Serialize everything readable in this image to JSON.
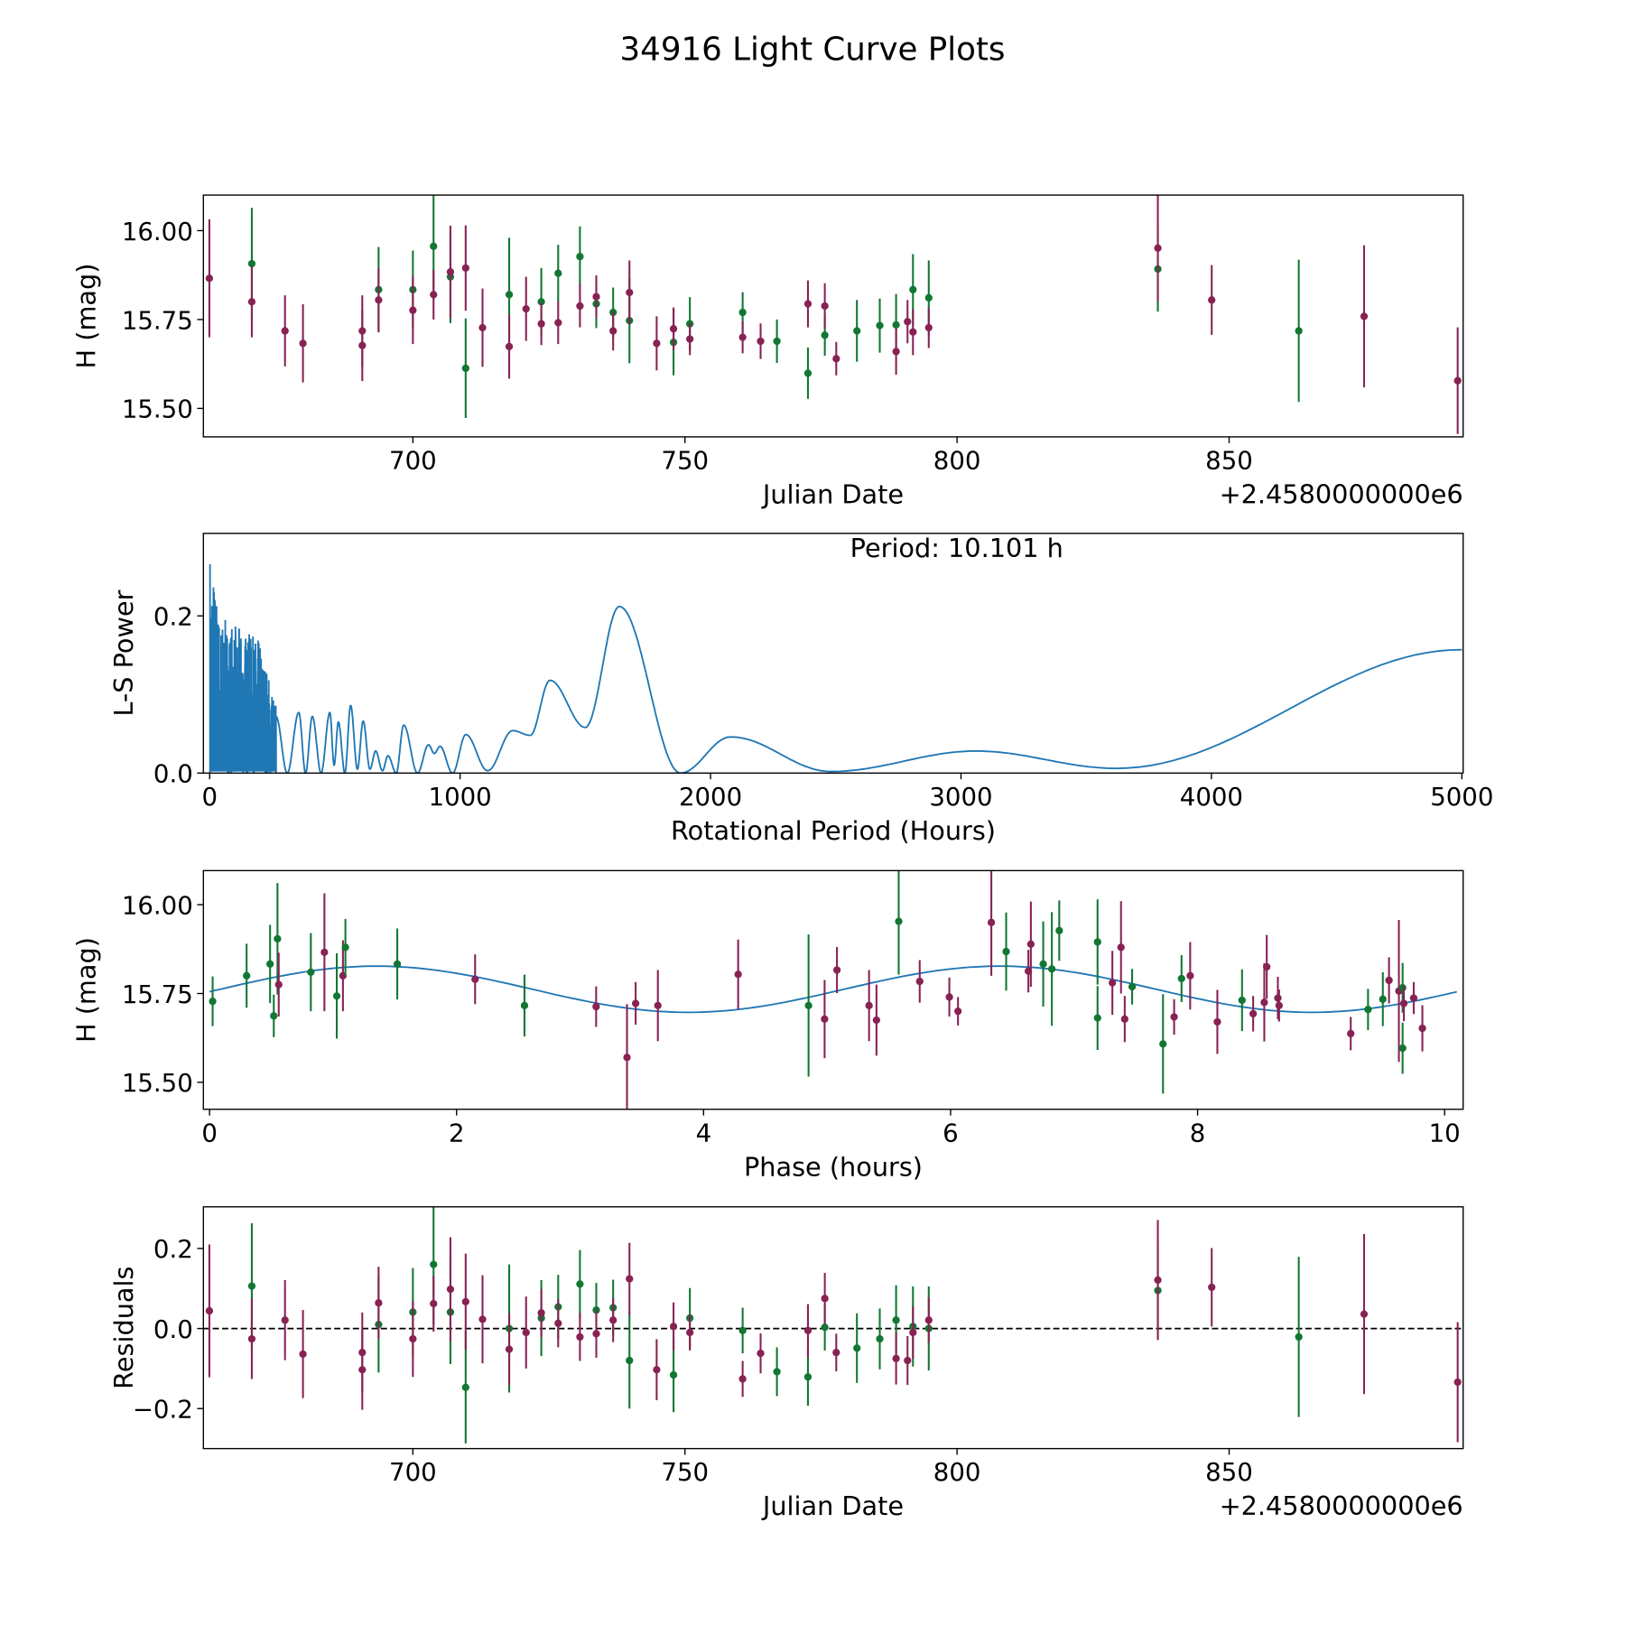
{
  "title": "34916 Light Curve Plots",
  "colors": {
    "maroon": "#882255",
    "green": "#117733",
    "line": "#1f77b4"
  },
  "chart_data": [
    {
      "type": "scatter",
      "name": "light-curve",
      "xlabel": "Julian Date",
      "ylabel": "H (mag)",
      "offset_text": "+2.4580000000e6",
      "xlim": [
        661.5,
        893
      ],
      "ylim": [
        15.42,
        16.1
      ],
      "xticks": [
        700,
        750,
        800,
        850
      ],
      "xtick_labels": [
        "700",
        "750",
        "800",
        "850"
      ],
      "yticks": [
        15.5,
        15.75,
        16.0
      ],
      "ytick_labels": [
        "15.50",
        "15.75",
        "16.00"
      ],
      "points": [
        [
          662.6,
          15.866,
          0.166,
          "m",
          0.044
        ],
        [
          670.4,
          15.907,
          0.157,
          "g",
          0.106
        ],
        [
          670.4,
          15.8,
          0.1,
          "m",
          -0.026
        ],
        [
          676.5,
          15.718,
          0.1,
          "m",
          0.021
        ],
        [
          679.8,
          15.683,
          0.11,
          "m",
          -0.064
        ],
        [
          690.7,
          15.718,
          0.1,
          "m",
          -0.06
        ],
        [
          690.7,
          15.677,
          0.1,
          "m",
          -0.103
        ],
        [
          693.7,
          15.834,
          0.12,
          "g",
          0.01
        ],
        [
          693.7,
          15.805,
          0.09,
          "m",
          0.064
        ],
        [
          700.0,
          15.834,
          0.11,
          "g",
          0.041
        ],
        [
          700.0,
          15.776,
          0.095,
          "m",
          -0.026
        ],
        [
          703.8,
          15.956,
          0.15,
          "g",
          0.16
        ],
        [
          703.8,
          15.82,
          0.07,
          "m",
          0.062
        ],
        [
          706.9,
          15.87,
          0.13,
          "g",
          0.041
        ],
        [
          706.9,
          15.884,
          0.13,
          "m",
          0.098
        ],
        [
          709.7,
          15.613,
          0.14,
          "g",
          -0.147
        ],
        [
          709.7,
          15.895,
          0.12,
          "m",
          0.067
        ],
        [
          712.8,
          15.727,
          0.11,
          "m",
          0.023
        ],
        [
          717.7,
          15.82,
          0.16,
          "g",
          0.0
        ],
        [
          717.7,
          15.674,
          0.09,
          "m",
          -0.052
        ],
        [
          720.8,
          15.78,
          0.09,
          "m",
          -0.01
        ],
        [
          723.6,
          15.8,
          0.095,
          "g",
          0.026
        ],
        [
          723.6,
          15.738,
          0.06,
          "m",
          0.039
        ],
        [
          726.7,
          15.88,
          0.08,
          "g",
          0.054
        ],
        [
          726.7,
          15.741,
          0.06,
          "m",
          0.013
        ],
        [
          730.7,
          15.927,
          0.085,
          "g",
          0.111
        ],
        [
          730.7,
          15.788,
          0.06,
          "m",
          -0.021
        ],
        [
          733.7,
          15.794,
          0.068,
          "g",
          0.046
        ],
        [
          733.7,
          15.814,
          0.06,
          "m",
          -0.013
        ],
        [
          736.8,
          15.77,
          0.07,
          "g",
          0.052
        ],
        [
          736.8,
          15.718,
          0.055,
          "m",
          0.021
        ],
        [
          739.8,
          15.747,
          0.12,
          "g",
          -0.08
        ],
        [
          739.8,
          15.826,
          0.09,
          "m",
          0.124
        ],
        [
          744.8,
          15.683,
          0.076,
          "m",
          -0.103
        ],
        [
          747.9,
          15.686,
          0.093,
          "g",
          -0.116
        ],
        [
          747.9,
          15.724,
          0.06,
          "m",
          0.005
        ],
        [
          750.9,
          15.738,
          0.075,
          "g",
          0.026
        ],
        [
          750.9,
          15.695,
          0.045,
          "m",
          -0.01
        ],
        [
          760.6,
          15.77,
          0.057,
          "g",
          -0.005
        ],
        [
          760.6,
          15.7,
          0.045,
          "m",
          -0.126
        ],
        [
          763.9,
          15.689,
          0.05,
          "m",
          -0.062
        ],
        [
          766.9,
          15.689,
          0.061,
          "g",
          -0.108
        ],
        [
          772.6,
          15.599,
          0.072,
          "g",
          -0.121
        ],
        [
          772.6,
          15.794,
          0.066,
          "m",
          -0.005
        ],
        [
          775.7,
          15.706,
          0.058,
          "g",
          0.003
        ],
        [
          775.7,
          15.788,
          0.064,
          "m",
          0.075
        ],
        [
          777.8,
          15.64,
          0.047,
          "m",
          -0.06
        ],
        [
          781.6,
          15.718,
          0.087,
          "g",
          -0.049
        ],
        [
          785.8,
          15.733,
          0.076,
          "g",
          -0.026
        ],
        [
          788.8,
          15.735,
          0.087,
          "g",
          0.021
        ],
        [
          788.8,
          15.66,
          0.065,
          "m",
          -0.075
        ],
        [
          790.9,
          15.744,
          0.061,
          "m",
          -0.08
        ],
        [
          791.9,
          15.834,
          0.1,
          "g",
          0.005
        ],
        [
          791.9,
          15.715,
          0.065,
          "m",
          -0.01
        ],
        [
          794.8,
          15.811,
          0.105,
          "g",
          0.0
        ],
        [
          794.8,
          15.727,
          0.057,
          "m",
          0.021
        ],
        [
          836.9,
          15.892,
          0.12,
          "g",
          0.095
        ],
        [
          836.9,
          15.951,
          0.15,
          "m",
          0.121
        ],
        [
          846.8,
          15.805,
          0.098,
          "m",
          0.103
        ],
        [
          862.8,
          15.718,
          0.2,
          "g",
          -0.021
        ],
        [
          874.8,
          15.759,
          0.2,
          "m",
          0.036
        ],
        [
          892.0,
          15.578,
          0.15,
          "m",
          -0.134
        ]
      ]
    },
    {
      "type": "line",
      "name": "periodogram",
      "xlabel": "Rotational Period (Hours)",
      "ylabel": "L-S Power",
      "annotation": "Period: 10.101 h",
      "xlim": [
        -25,
        5005
      ],
      "ylim": [
        0,
        0.305
      ],
      "xticks": [
        0,
        1000,
        2000,
        3000,
        4000,
        5000
      ],
      "xtick_labels": [
        "0",
        "1000",
        "2000",
        "3000",
        "4000",
        "5000"
      ],
      "yticks": [
        0,
        0.2
      ],
      "ytick_labels": [
        "0.0",
        "0.2"
      ],
      "dense_region": {
        "to_period": 265,
        "envelope": [
          [
            0,
            0.3
          ],
          [
            40,
            0.2
          ],
          [
            200,
            0.17
          ],
          [
            265,
            0.09
          ]
        ]
      },
      "extrema": [
        [
          265,
          0.072
        ],
        [
          310,
          0.0
        ],
        [
          356,
          0.077
        ],
        [
          383,
          0.0
        ],
        [
          410,
          0.072
        ],
        [
          445,
          0.0
        ],
        [
          480,
          0.077
        ],
        [
          497,
          0.01
        ],
        [
          514,
          0.065
        ],
        [
          540,
          0.0
        ],
        [
          563,
          0.086
        ],
        [
          590,
          0.005
        ],
        [
          613,
          0.066
        ],
        [
          640,
          0.005
        ],
        [
          663,
          0.028
        ],
        [
          690,
          0.003
        ],
        [
          712,
          0.022
        ],
        [
          745,
          0.0
        ],
        [
          775,
          0.061
        ],
        [
          830,
          0.0
        ],
        [
          874,
          0.036
        ],
        [
          897,
          0.025
        ],
        [
          920,
          0.034
        ],
        [
          970,
          0.0
        ],
        [
          1023,
          0.049
        ],
        [
          1110,
          0.003
        ],
        [
          1210,
          0.054
        ],
        [
          1280,
          0.048
        ],
        [
          1359,
          0.118
        ],
        [
          1500,
          0.058
        ],
        [
          1636,
          0.212
        ],
        [
          1880,
          0.0
        ],
        [
          2080,
          0.046
        ],
        [
          2480,
          0.002
        ],
        [
          3060,
          0.028
        ],
        [
          3620,
          0.006
        ],
        [
          5000,
          0.157
        ]
      ]
    },
    {
      "type": "scatter",
      "name": "phased-curve",
      "xlabel": "Phase (hours)",
      "ylabel": "H (mag)",
      "xlim": [
        -0.05,
        10.15
      ],
      "ylim": [
        15.424,
        16.096
      ],
      "xticks": [
        0,
        2,
        4,
        6,
        8,
        10
      ],
      "xtick_labels": [
        "0",
        "2",
        "4",
        "6",
        "8",
        "10"
      ],
      "yticks": [
        15.5,
        15.75,
        16.0
      ],
      "ytick_labels": [
        "15.50",
        "15.75",
        "16.00"
      ],
      "fit": {
        "period_h": 10.101,
        "mean": 15.762,
        "amplitude": 0.065,
        "peak_phase": 1.35,
        "cycles_per_period": 2
      },
      "points": [
        [
          0.025,
          15.728,
          0.07,
          "g"
        ],
        [
          0.3,
          15.8,
          0.09,
          "g"
        ],
        [
          0.49,
          15.833,
          0.11,
          "g"
        ],
        [
          0.52,
          15.687,
          0.06,
          "g"
        ],
        [
          0.55,
          15.904,
          0.157,
          "g"
        ],
        [
          0.56,
          15.775,
          0.09,
          "m"
        ],
        [
          0.82,
          15.81,
          0.11,
          "g"
        ],
        [
          0.93,
          15.866,
          0.166,
          "m"
        ],
        [
          1.03,
          15.743,
          0.12,
          "g"
        ],
        [
          1.08,
          15.8,
          0.1,
          "m"
        ],
        [
          1.1,
          15.88,
          0.08,
          "g"
        ],
        [
          1.52,
          15.833,
          0.1,
          "g"
        ],
        [
          2.15,
          15.79,
          0.07,
          "m"
        ],
        [
          2.55,
          15.716,
          0.087,
          "g"
        ],
        [
          3.13,
          15.713,
          0.057,
          "m"
        ],
        [
          3.38,
          15.57,
          0.15,
          "m"
        ],
        [
          3.45,
          15.722,
          0.06,
          "m"
        ],
        [
          3.63,
          15.716,
          0.1,
          "m"
        ],
        [
          4.28,
          15.804,
          0.098,
          "m"
        ],
        [
          4.85,
          15.716,
          0.2,
          "g"
        ],
        [
          4.98,
          15.678,
          0.11,
          "m"
        ],
        [
          5.08,
          15.816,
          0.065,
          "m"
        ],
        [
          5.34,
          15.716,
          0.1,
          "m"
        ],
        [
          5.4,
          15.675,
          0.1,
          "m"
        ],
        [
          5.58,
          15.953,
          0.15,
          "g"
        ],
        [
          5.75,
          15.784,
          0.06,
          "m"
        ],
        [
          5.99,
          15.74,
          0.055,
          "m"
        ],
        [
          6.06,
          15.7,
          0.04,
          "m"
        ],
        [
          6.33,
          15.95,
          0.15,
          "m"
        ],
        [
          6.45,
          15.868,
          0.11,
          "g"
        ],
        [
          6.63,
          15.813,
          0.06,
          "m"
        ],
        [
          6.65,
          15.889,
          0.12,
          "m"
        ],
        [
          6.75,
          15.833,
          0.12,
          "g"
        ],
        [
          6.82,
          15.819,
          0.16,
          "g"
        ],
        [
          6.88,
          15.927,
          0.085,
          "g"
        ],
        [
          7.19,
          15.895,
          0.12,
          "g"
        ],
        [
          7.19,
          15.681,
          0.09,
          "g"
        ],
        [
          7.31,
          15.78,
          0.09,
          "m"
        ],
        [
          7.38,
          15.88,
          0.13,
          "m"
        ],
        [
          7.41,
          15.678,
          0.065,
          "m"
        ],
        [
          7.47,
          15.769,
          0.05,
          "g"
        ],
        [
          7.72,
          15.608,
          0.14,
          "g"
        ],
        [
          7.81,
          15.684,
          0.05,
          "m"
        ],
        [
          7.87,
          15.792,
          0.066,
          "g"
        ],
        [
          7.94,
          15.8,
          0.095,
          "m"
        ],
        [
          8.16,
          15.67,
          0.09,
          "m"
        ],
        [
          8.36,
          15.731,
          0.087,
          "g"
        ],
        [
          8.45,
          15.693,
          0.05,
          "m"
        ],
        [
          8.54,
          15.725,
          0.11,
          "m"
        ],
        [
          8.56,
          15.825,
          0.09,
          "m"
        ],
        [
          8.65,
          15.737,
          0.06,
          "m"
        ],
        [
          8.66,
          15.716,
          0.045,
          "m"
        ],
        [
          9.24,
          15.637,
          0.047,
          "m"
        ],
        [
          9.38,
          15.705,
          0.058,
          "g"
        ],
        [
          9.5,
          15.734,
          0.076,
          "g"
        ],
        [
          9.55,
          15.787,
          0.065,
          "m"
        ],
        [
          9.63,
          15.757,
          0.2,
          "m"
        ],
        [
          9.66,
          15.766,
          0.07,
          "g"
        ],
        [
          9.66,
          15.596,
          0.072,
          "g"
        ],
        [
          9.67,
          15.722,
          0.05,
          "m"
        ],
        [
          9.75,
          15.737,
          0.045,
          "m"
        ],
        [
          9.82,
          15.652,
          0.065,
          "m"
        ]
      ]
    },
    {
      "type": "scatter",
      "name": "residuals",
      "xlabel": "Julian Date",
      "ylabel": "Residuals",
      "offset_text": "+2.4580000000e6",
      "xlim": [
        661.5,
        893
      ],
      "ylim": [
        -0.3,
        0.304
      ],
      "xticks": [
        700,
        750,
        800,
        850
      ],
      "xtick_labels": [
        "700",
        "750",
        "800",
        "850"
      ],
      "yticks": [
        -0.2,
        0.0,
        0.2
      ],
      "ytick_labels": [
        "−0.2",
        "0.0",
        "0.2"
      ],
      "zero_line": true
    }
  ]
}
